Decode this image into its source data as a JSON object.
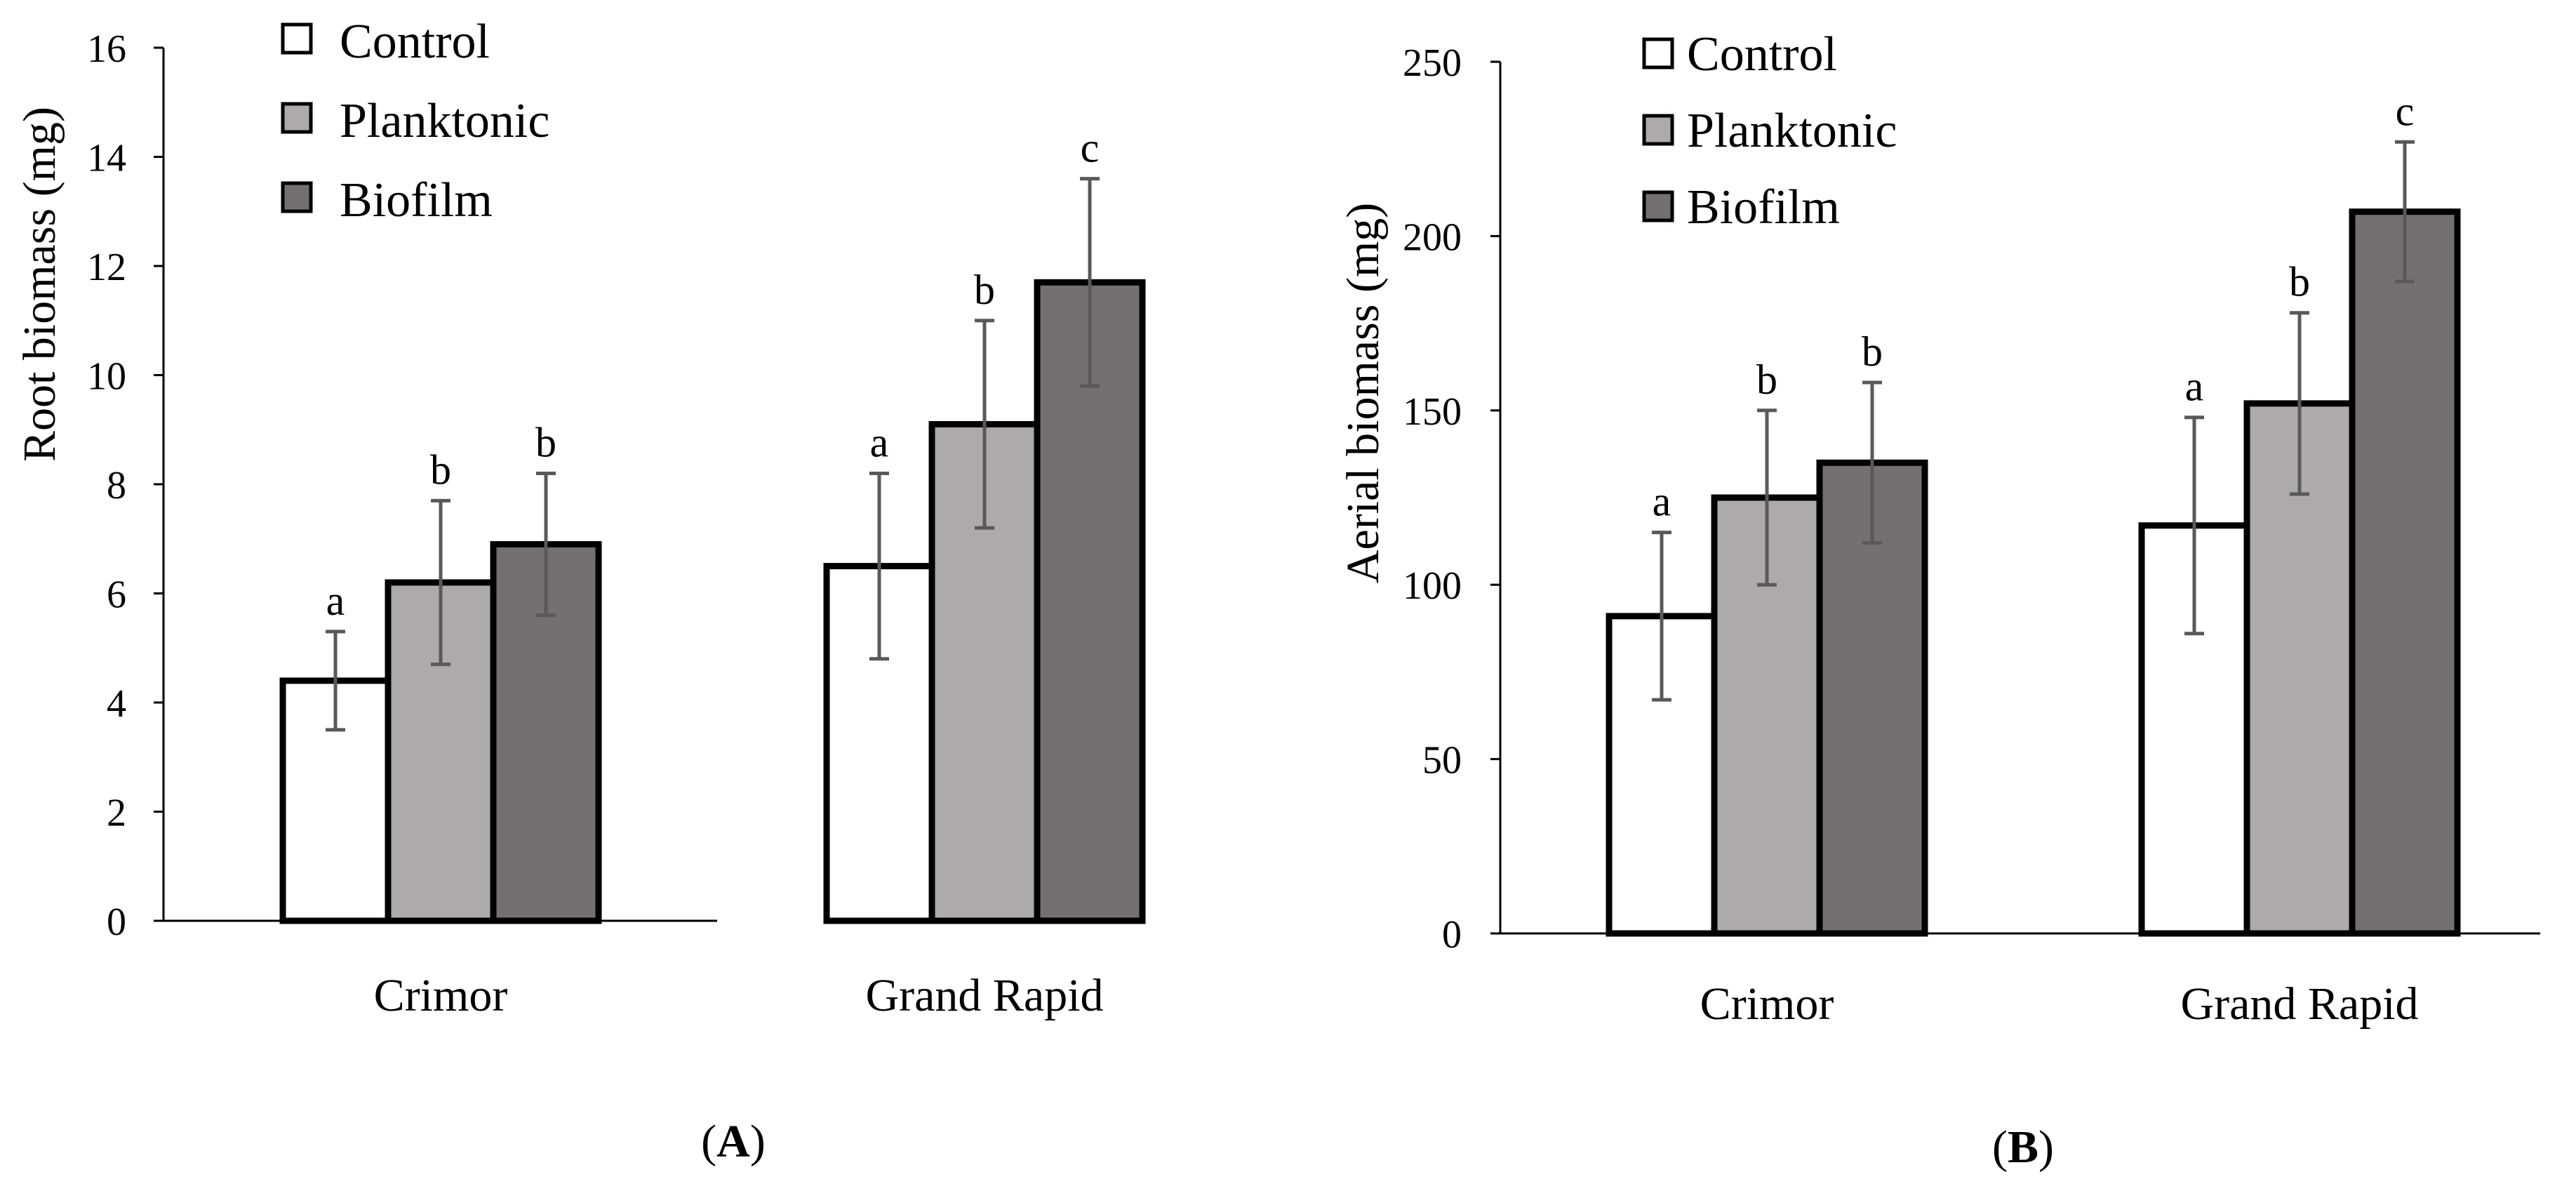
{
  "colors": {
    "control": "#ffffff",
    "planktonic": "#aeaaaa",
    "biofilm": "#757070",
    "outline": "#000000",
    "error": "#595959"
  },
  "chart_data": [
    {
      "id": "A",
      "type": "bar",
      "panel_label": "A",
      "ylabel": "Root biomass (mg)",
      "xlabel": "",
      "ylim": [
        0,
        16
      ],
      "yticks": [
        "0",
        "2",
        "4",
        "6",
        "8",
        "10",
        "12",
        "14",
        "16"
      ],
      "grid": false,
      "legend_position": "top-left",
      "categories": [
        "Crimor",
        "Grand Rapid"
      ],
      "series": [
        {
          "name": "Control",
          "color": "#ffffff",
          "values": [
            4.4,
            6.5
          ],
          "error": [
            0.9,
            1.7
          ],
          "labels": [
            "a",
            "a"
          ]
        },
        {
          "name": "Planktonic",
          "color": "#aeaaaa",
          "values": [
            6.2,
            9.1
          ],
          "error": [
            1.5,
            1.9
          ],
          "labels": [
            "b",
            "b"
          ]
        },
        {
          "name": "Biofilm",
          "color": "#757070",
          "values": [
            6.9,
            11.7
          ],
          "error": [
            1.3,
            1.9
          ],
          "labels": [
            "b",
            "c"
          ]
        }
      ]
    },
    {
      "id": "B",
      "type": "bar",
      "panel_label": "B",
      "ylabel": "Aerial biomass (mg)",
      "xlabel": "",
      "ylim": [
        0,
        250
      ],
      "yticks": [
        "0",
        "50",
        "100",
        "150",
        "200",
        "250"
      ],
      "grid": false,
      "legend_position": "top-left",
      "categories": [
        "Crimor",
        "Grand Rapid"
      ],
      "series": [
        {
          "name": "Control",
          "color": "#ffffff",
          "values": [
            91,
            117
          ],
          "error": [
            24,
            31
          ],
          "labels": [
            "a",
            "a"
          ]
        },
        {
          "name": "Planktonic",
          "color": "#aeaaaa",
          "values": [
            125,
            152
          ],
          "error": [
            25,
            26
          ],
          "labels": [
            "b",
            "b"
          ]
        },
        {
          "name": "Biofilm",
          "color": "#757070",
          "values": [
            135,
            207
          ],
          "error": [
            23,
            20
          ],
          "labels": [
            "b",
            "c"
          ]
        }
      ]
    }
  ]
}
